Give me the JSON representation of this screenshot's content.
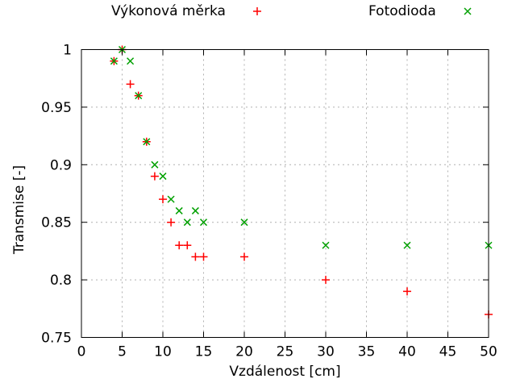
{
  "page": {
    "background": "#ffffff"
  },
  "chart_data": {
    "type": "scatter",
    "title": "",
    "xlabel": "Vzdálenost [cm]",
    "ylabel": "Transmise [-]",
    "xlim": [
      0,
      50
    ],
    "ylim": [
      0.75,
      1.0
    ],
    "x_tick_values": [
      0,
      5,
      10,
      15,
      20,
      25,
      30,
      35,
      40,
      45,
      50
    ],
    "x_tick_labels": [
      "0",
      "5",
      "10",
      "15",
      "20",
      "25",
      "30",
      "35",
      "40",
      "45",
      "50"
    ],
    "y_tick_values": [
      0.75,
      0.8,
      0.85,
      0.9,
      0.95,
      1.0
    ],
    "y_tick_labels": [
      "0.75",
      "0.8",
      "0.85",
      "0.9",
      "0.95",
      "1"
    ],
    "grid": true,
    "legend_position": "top-outside",
    "colors": {
      "border": "#000000",
      "grid": "#b0b0b0",
      "text": "#000000"
    },
    "series": [
      {
        "name": "Výkonová měrka",
        "marker": "plus",
        "color": "#ff0000",
        "points": [
          [
            4,
            0.99
          ],
          [
            5,
            1.0
          ],
          [
            6,
            0.97
          ],
          [
            7,
            0.96
          ],
          [
            8,
            0.92
          ],
          [
            9,
            0.89
          ],
          [
            10,
            0.87
          ],
          [
            11,
            0.85
          ],
          [
            12,
            0.83
          ],
          [
            13,
            0.83
          ],
          [
            14,
            0.82
          ],
          [
            15,
            0.82
          ],
          [
            20,
            0.82
          ],
          [
            30,
            0.8
          ],
          [
            40,
            0.79
          ],
          [
            50,
            0.77
          ]
        ]
      },
      {
        "name": "Fotodioda",
        "marker": "cross",
        "color": "#00a000",
        "points": [
          [
            4,
            0.99
          ],
          [
            5,
            1.0
          ],
          [
            6,
            0.99
          ],
          [
            7,
            0.96
          ],
          [
            8,
            0.92
          ],
          [
            9,
            0.9
          ],
          [
            10,
            0.89
          ],
          [
            11,
            0.87
          ],
          [
            12,
            0.86
          ],
          [
            13,
            0.85
          ],
          [
            14,
            0.86
          ],
          [
            15,
            0.85
          ],
          [
            20,
            0.85
          ],
          [
            30,
            0.83
          ],
          [
            40,
            0.83
          ],
          [
            50,
            0.83
          ]
        ]
      }
    ]
  }
}
